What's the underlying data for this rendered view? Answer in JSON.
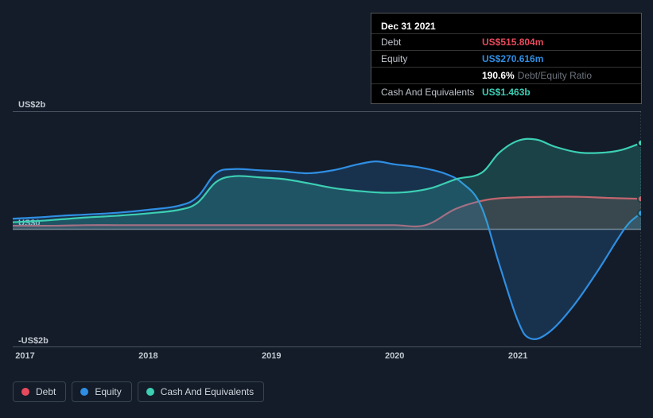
{
  "background_color": "#131c28",
  "tooltip": {
    "date": "Dec 31 2021",
    "rows": [
      {
        "label": "Debt",
        "value": "US$515.804m",
        "color": "#e74a5c"
      },
      {
        "label": "Equity",
        "value": "US$270.616m",
        "color": "#2f8ee3"
      },
      {
        "label": "",
        "value": "190.6%",
        "extra": "Debt/Equity Ratio",
        "color": "#ffffff"
      },
      {
        "label": "Cash And Equivalents",
        "value": "US$1.463b",
        "color": "#3ccfb4"
      }
    ]
  },
  "chart": {
    "type": "area",
    "ylim": [
      -2,
      2
    ],
    "y_ticks": [
      {
        "v": 2,
        "label": "US$2b"
      },
      {
        "v": 0,
        "label": "US$0"
      },
      {
        "v": -2,
        "label": "-US$2b"
      }
    ],
    "x_domain": [
      2016.9,
      2022.0
    ],
    "x_ticks": [
      2017,
      2018,
      2019,
      2020,
      2021
    ],
    "guideline_x": 2022.0,
    "series": [
      {
        "name": "Debt",
        "color": "#e74a5c",
        "fill_opacity": 0.18,
        "points": [
          [
            2016.9,
            0.06
          ],
          [
            2017.25,
            0.06
          ],
          [
            2017.5,
            0.07
          ],
          [
            2017.75,
            0.07
          ],
          [
            2018.0,
            0.07
          ],
          [
            2018.25,
            0.07
          ],
          [
            2018.5,
            0.07
          ],
          [
            2018.75,
            0.07
          ],
          [
            2019.0,
            0.07
          ],
          [
            2019.25,
            0.07
          ],
          [
            2019.5,
            0.07
          ],
          [
            2019.75,
            0.07
          ],
          [
            2020.0,
            0.07
          ],
          [
            2020.25,
            0.07
          ],
          [
            2020.5,
            0.35
          ],
          [
            2020.75,
            0.5
          ],
          [
            2021.0,
            0.54
          ],
          [
            2021.25,
            0.55
          ],
          [
            2021.5,
            0.55
          ],
          [
            2021.75,
            0.53
          ],
          [
            2022.0,
            0.516
          ]
        ]
      },
      {
        "name": "Equity",
        "color": "#2f8ee3",
        "fill_opacity": 0.2,
        "points": [
          [
            2016.9,
            0.18
          ],
          [
            2017.1,
            0.2
          ],
          [
            2017.3,
            0.23
          ],
          [
            2017.5,
            0.25
          ],
          [
            2017.75,
            0.28
          ],
          [
            2018.0,
            0.33
          ],
          [
            2018.25,
            0.4
          ],
          [
            2018.4,
            0.55
          ],
          [
            2018.55,
            0.95
          ],
          [
            2018.7,
            1.02
          ],
          [
            2018.9,
            1.0
          ],
          [
            2019.1,
            0.98
          ],
          [
            2019.3,
            0.95
          ],
          [
            2019.5,
            1.0
          ],
          [
            2019.7,
            1.1
          ],
          [
            2019.85,
            1.15
          ],
          [
            2020.0,
            1.1
          ],
          [
            2020.2,
            1.05
          ],
          [
            2020.4,
            0.95
          ],
          [
            2020.55,
            0.78
          ],
          [
            2020.7,
            0.4
          ],
          [
            2020.85,
            -0.6
          ],
          [
            2021.0,
            -1.55
          ],
          [
            2021.1,
            -1.85
          ],
          [
            2021.25,
            -1.75
          ],
          [
            2021.45,
            -1.3
          ],
          [
            2021.65,
            -0.7
          ],
          [
            2021.8,
            -0.2
          ],
          [
            2021.9,
            0.1
          ],
          [
            2022.0,
            0.271
          ]
        ]
      },
      {
        "name": "Cash And Equivalents",
        "color": "#3ccfb4",
        "fill_opacity": 0.22,
        "points": [
          [
            2016.9,
            0.12
          ],
          [
            2017.1,
            0.14
          ],
          [
            2017.3,
            0.17
          ],
          [
            2017.5,
            0.2
          ],
          [
            2017.75,
            0.23
          ],
          [
            2018.0,
            0.27
          ],
          [
            2018.25,
            0.33
          ],
          [
            2018.4,
            0.45
          ],
          [
            2018.55,
            0.8
          ],
          [
            2018.7,
            0.9
          ],
          [
            2018.9,
            0.88
          ],
          [
            2019.1,
            0.85
          ],
          [
            2019.3,
            0.78
          ],
          [
            2019.5,
            0.7
          ],
          [
            2019.7,
            0.65
          ],
          [
            2019.9,
            0.62
          ],
          [
            2020.1,
            0.63
          ],
          [
            2020.3,
            0.7
          ],
          [
            2020.5,
            0.85
          ],
          [
            2020.7,
            0.95
          ],
          [
            2020.85,
            1.3
          ],
          [
            2021.0,
            1.5
          ],
          [
            2021.15,
            1.52
          ],
          [
            2021.3,
            1.4
          ],
          [
            2021.5,
            1.3
          ],
          [
            2021.7,
            1.3
          ],
          [
            2021.85,
            1.35
          ],
          [
            2022.0,
            1.463
          ]
        ]
      }
    ],
    "axis_color": "#4a5362",
    "baseline_color": "#7a828f",
    "text_color": "#c2c8d0",
    "fontsize_axis": 11
  },
  "legend": {
    "items": [
      {
        "label": "Debt",
        "color": "#e74a5c"
      },
      {
        "label": "Equity",
        "color": "#2f8ee3"
      },
      {
        "label": "Cash And Equivalents",
        "color": "#3ccfb4"
      }
    ]
  }
}
